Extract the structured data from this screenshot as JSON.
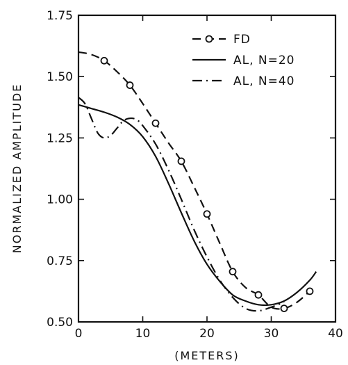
{
  "chart_data": {
    "type": "line",
    "title": "",
    "xlabel": "(METERS)",
    "ylabel": "NORMALIZED AMPLITUDE",
    "xlim": [
      0,
      40
    ],
    "ylim": [
      0.5,
      1.75
    ],
    "x_ticks": [
      0,
      10,
      20,
      30,
      40
    ],
    "x_tick_labels": [
      "0",
      "10",
      "20",
      "30",
      "40"
    ],
    "y_ticks": [
      0.5,
      0.75,
      1.0,
      1.25,
      1.5,
      1.75
    ],
    "y_tick_labels": [
      "0.50",
      "0.75",
      "1.00",
      "1.25",
      "1.50",
      "1.75"
    ],
    "grid": false,
    "legend_position": "top-right",
    "series": [
      {
        "name": "FD",
        "style": "dashed",
        "marker": "open-circle",
        "markers_x": [
          4,
          8,
          12,
          16,
          20,
          24,
          28,
          32,
          36
        ],
        "x": [
          0,
          2,
          4,
          6,
          8,
          10,
          12,
          14,
          16,
          18,
          20,
          22,
          24,
          26,
          28,
          30,
          32,
          34,
          36
        ],
        "y": [
          1.6,
          1.59,
          1.565,
          1.52,
          1.465,
          1.39,
          1.31,
          1.23,
          1.155,
          1.05,
          0.94,
          0.82,
          0.705,
          0.64,
          0.61,
          0.56,
          0.555,
          0.58,
          0.625
        ]
      },
      {
        "name": "AL, N=20",
        "style": "solid",
        "marker": "none",
        "x": [
          0,
          2,
          4,
          6,
          8,
          10,
          12,
          14,
          16,
          18,
          20,
          22,
          24,
          26,
          28,
          30,
          32,
          34,
          36,
          37
        ],
        "y": [
          1.385,
          1.37,
          1.355,
          1.335,
          1.305,
          1.255,
          1.175,
          1.065,
          0.945,
          0.83,
          0.735,
          0.665,
          0.61,
          0.585,
          0.57,
          0.57,
          0.585,
          0.62,
          0.67,
          0.705
        ]
      },
      {
        "name": "AL, N=40",
        "style": "dash-dot",
        "marker": "none",
        "x": [
          0,
          1,
          2,
          3,
          4,
          5,
          6,
          7,
          8,
          9,
          10,
          12,
          14,
          16,
          18,
          20,
          22,
          24,
          26,
          28,
          30,
          32
        ],
        "y": [
          1.415,
          1.39,
          1.33,
          1.27,
          1.25,
          1.26,
          1.29,
          1.32,
          1.33,
          1.325,
          1.3,
          1.225,
          1.12,
          1.0,
          0.875,
          0.765,
          0.67,
          0.6,
          0.555,
          0.545,
          0.56,
          0.58
        ]
      }
    ]
  }
}
